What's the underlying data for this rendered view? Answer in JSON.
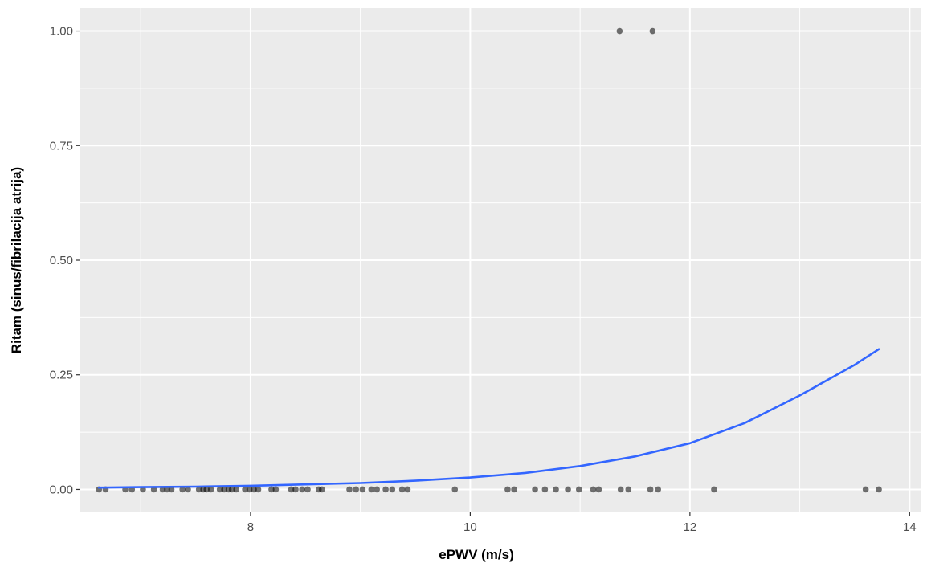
{
  "chart_data": {
    "type": "scatter",
    "title": "",
    "xlabel": "ePWV (m/s)",
    "ylabel": "Ritam (sinus/fibrilacija atrija)",
    "xlim": [
      6.45,
      14.1
    ],
    "ylim": [
      -0.05,
      1.05
    ],
    "x_ticks": [
      8,
      10,
      12,
      14
    ],
    "x_tick_labels": [
      "8",
      "10",
      "12",
      "14"
    ],
    "y_ticks": [
      0,
      0.25,
      0.5,
      0.75,
      1
    ],
    "y_tick_labels": [
      "0.00",
      "0.25",
      "0.50",
      "0.75",
      "1.00"
    ],
    "grid": true,
    "legend": "none",
    "colors": {
      "panel": "#ebebeb",
      "grid": "#ffffff",
      "points": "#000000",
      "curve": "#3366ff"
    },
    "series": [
      {
        "kind": "points",
        "points": [
          {
            "x": 6.62,
            "y": 0
          },
          {
            "x": 6.68,
            "y": 0
          },
          {
            "x": 6.86,
            "y": 0
          },
          {
            "x": 6.92,
            "y": 0
          },
          {
            "x": 7.02,
            "y": 0
          },
          {
            "x": 7.12,
            "y": 0
          },
          {
            "x": 7.2,
            "y": 0
          },
          {
            "x": 7.24,
            "y": 0
          },
          {
            "x": 7.28,
            "y": 0
          },
          {
            "x": 7.38,
            "y": 0
          },
          {
            "x": 7.43,
            "y": 0
          },
          {
            "x": 7.53,
            "y": 0
          },
          {
            "x": 7.57,
            "y": 0
          },
          {
            "x": 7.6,
            "y": 0
          },
          {
            "x": 7.64,
            "y": 0
          },
          {
            "x": 7.72,
            "y": 0
          },
          {
            "x": 7.76,
            "y": 0
          },
          {
            "x": 7.8,
            "y": 0
          },
          {
            "x": 7.83,
            "y": 0
          },
          {
            "x": 7.87,
            "y": 0
          },
          {
            "x": 7.95,
            "y": 0
          },
          {
            "x": 7.99,
            "y": 0
          },
          {
            "x": 8.03,
            "y": 0
          },
          {
            "x": 8.07,
            "y": 0
          },
          {
            "x": 8.19,
            "y": 0
          },
          {
            "x": 8.23,
            "y": 0
          },
          {
            "x": 8.37,
            "y": 0
          },
          {
            "x": 8.41,
            "y": 0
          },
          {
            "x": 8.47,
            "y": 0
          },
          {
            "x": 8.52,
            "y": 0
          },
          {
            "x": 8.62,
            "y": 0
          },
          {
            "x": 8.65,
            "y": 0
          },
          {
            "x": 8.9,
            "y": 0
          },
          {
            "x": 8.96,
            "y": 0
          },
          {
            "x": 9.02,
            "y": 0
          },
          {
            "x": 9.1,
            "y": 0
          },
          {
            "x": 9.15,
            "y": 0
          },
          {
            "x": 9.23,
            "y": 0
          },
          {
            "x": 9.29,
            "y": 0
          },
          {
            "x": 9.38,
            "y": 0
          },
          {
            "x": 9.43,
            "y": 0
          },
          {
            "x": 9.86,
            "y": 0
          },
          {
            "x": 10.34,
            "y": 0
          },
          {
            "x": 10.4,
            "y": 0
          },
          {
            "x": 10.59,
            "y": 0
          },
          {
            "x": 10.68,
            "y": 0
          },
          {
            "x": 10.78,
            "y": 0
          },
          {
            "x": 10.89,
            "y": 0
          },
          {
            "x": 10.99,
            "y": 0
          },
          {
            "x": 11.12,
            "y": 0
          },
          {
            "x": 11.17,
            "y": 0
          },
          {
            "x": 11.37,
            "y": 0
          },
          {
            "x": 11.44,
            "y": 0
          },
          {
            "x": 11.64,
            "y": 0
          },
          {
            "x": 11.71,
            "y": 0
          },
          {
            "x": 12.22,
            "y": 0
          },
          {
            "x": 13.6,
            "y": 0
          },
          {
            "x": 13.72,
            "y": 0
          },
          {
            "x": 11.36,
            "y": 1
          },
          {
            "x": 11.66,
            "y": 1
          }
        ]
      },
      {
        "kind": "fitted-curve",
        "points": [
          {
            "x": 6.62,
            "y": 0.004
          },
          {
            "x": 7.0,
            "y": 0.005
          },
          {
            "x": 7.5,
            "y": 0.006
          },
          {
            "x": 8.0,
            "y": 0.008
          },
          {
            "x": 8.5,
            "y": 0.011
          },
          {
            "x": 9.0,
            "y": 0.014
          },
          {
            "x": 9.5,
            "y": 0.019
          },
          {
            "x": 10.0,
            "y": 0.026
          },
          {
            "x": 10.5,
            "y": 0.036
          },
          {
            "x": 11.0,
            "y": 0.051
          },
          {
            "x": 11.5,
            "y": 0.072
          },
          {
            "x": 12.0,
            "y": 0.101
          },
          {
            "x": 12.5,
            "y": 0.145
          },
          {
            "x": 13.0,
            "y": 0.205
          },
          {
            "x": 13.5,
            "y": 0.272
          },
          {
            "x": 13.72,
            "y": 0.306
          }
        ]
      }
    ]
  }
}
